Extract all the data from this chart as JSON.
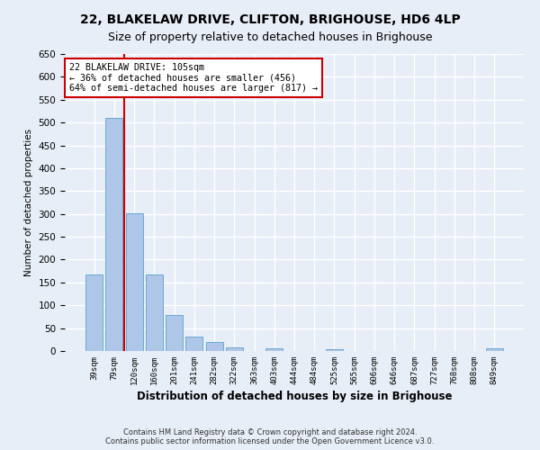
{
  "title": "22, BLAKELAW DRIVE, CLIFTON, BRIGHOUSE, HD6 4LP",
  "subtitle": "Size of property relative to detached houses in Brighouse",
  "xlabel": "Distribution of detached houses by size in Brighouse",
  "ylabel": "Number of detached properties",
  "bins": [
    "39sqm",
    "79sqm",
    "120sqm",
    "160sqm",
    "201sqm",
    "241sqm",
    "282sqm",
    "322sqm",
    "363sqm",
    "403sqm",
    "444sqm",
    "484sqm",
    "525sqm",
    "565sqm",
    "606sqm",
    "646sqm",
    "687sqm",
    "727sqm",
    "768sqm",
    "808sqm",
    "849sqm"
  ],
  "values": [
    167,
    511,
    302,
    167,
    78,
    31,
    19,
    8,
    0,
    5,
    0,
    0,
    4,
    0,
    0,
    0,
    0,
    0,
    0,
    0,
    5
  ],
  "bar_color": "#aec6e8",
  "bar_edge_color": "#6aaad4",
  "bg_color": "#e8eef7",
  "grid_color": "#ffffff",
  "vline_color": "#cc0000",
  "annotation_text": "22 BLAKELAW DRIVE: 105sqm\n← 36% of detached houses are smaller (456)\n64% of semi-detached houses are larger (817) →",
  "annotation_box_color": "#ffffff",
  "annotation_box_edge": "#cc0000",
  "footer": "Contains HM Land Registry data © Crown copyright and database right 2024.\nContains public sector information licensed under the Open Government Licence v3.0.",
  "ylim": [
    0,
    650
  ],
  "title_fontsize": 10,
  "subtitle_fontsize": 9
}
